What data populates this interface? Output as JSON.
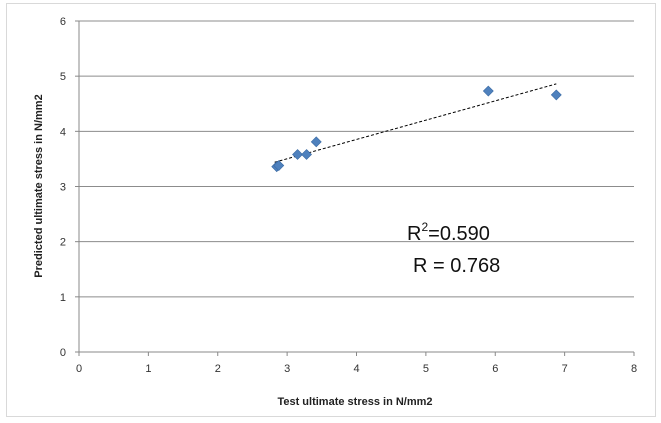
{
  "chart_data": {
    "type": "scatter",
    "title": "",
    "xlabel": "Test ultimate stress in N/mm2",
    "ylabel": "Predicted ultimate stress in N/mm2",
    "xlim": [
      0,
      8
    ],
    "ylim": [
      0,
      6
    ],
    "x_ticks": [
      0,
      1,
      2,
      3,
      4,
      5,
      6,
      7,
      8
    ],
    "y_ticks": [
      0,
      1,
      2,
      3,
      4,
      5,
      6
    ],
    "grid": "horizontal major gridlines",
    "legend": "none",
    "series": [
      {
        "marker": "diamond",
        "color": "#4f81bd",
        "points": [
          {
            "x": 2.85,
            "y": 3.36
          },
          {
            "x": 2.88,
            "y": 3.38
          },
          {
            "x": 3.15,
            "y": 3.58
          },
          {
            "x": 3.28,
            "y": 3.58
          },
          {
            "x": 3.42,
            "y": 3.81
          },
          {
            "x": 5.9,
            "y": 4.73
          },
          {
            "x": 6.88,
            "y": 4.66
          }
        ]
      }
    ],
    "trendline": {
      "style": "dashed",
      "color": "#000000",
      "from": {
        "x": 2.82,
        "y": 3.44
      },
      "to": {
        "x": 6.88,
        "y": 4.86
      }
    },
    "annotations": {
      "r2_prefix": "R",
      "r2_superscript": "2",
      "r2_value": "=0.590",
      "r_text": "R = 0.768"
    }
  }
}
